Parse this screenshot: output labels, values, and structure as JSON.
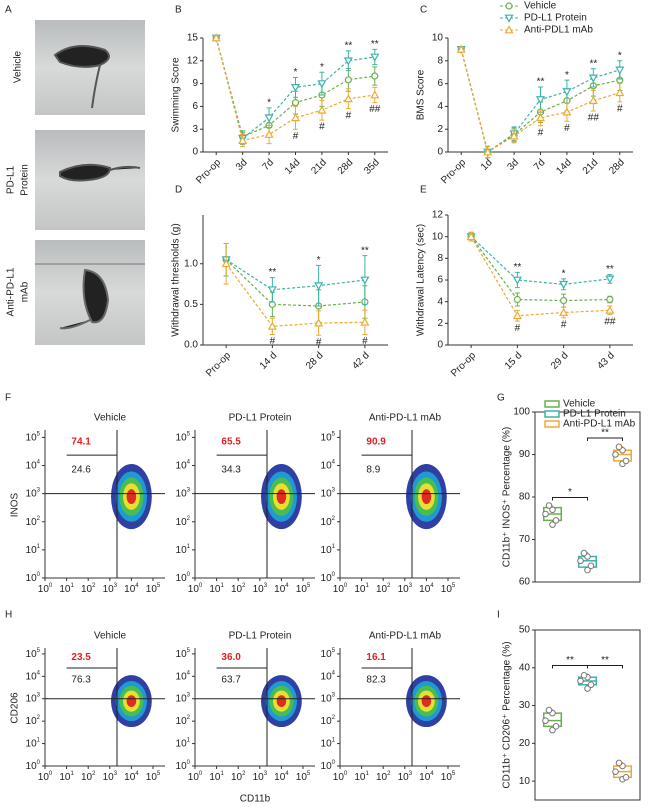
{
  "panel_labels": [
    "A",
    "B",
    "C",
    "D",
    "E",
    "F",
    "G",
    "H",
    "I"
  ],
  "photos": {
    "labels": [
      [
        "Vehicle"
      ],
      [
        "PD-L1",
        "Protein"
      ],
      [
        "Anti-PD-L1",
        "mAb"
      ]
    ]
  },
  "chart_data": [
    {
      "type": "line",
      "ylabel": "Swimming Score",
      "categories": [
        "Pro-op",
        "3d",
        "7d",
        "14d",
        "21d",
        "28d",
        "35d"
      ],
      "ylim": [
        0,
        15
      ],
      "yticks": [
        0,
        3,
        6,
        9,
        12,
        15
      ],
      "series": [
        {
          "color": "#6ab04c",
          "marker": "circle",
          "values": [
            15,
            2,
            3.5,
            6.5,
            7.5,
            9.5,
            10
          ],
          "errors": [
            0.3,
            0.8,
            1.2,
            1.5,
            1.5,
            1.5,
            1.2
          ]
        },
        {
          "color": "#3bb3a9",
          "marker": "triangle-down",
          "values": [
            15,
            1.8,
            4.5,
            8.5,
            9,
            12,
            12.5
          ],
          "errors": [
            0.3,
            0.8,
            1.3,
            1.3,
            1.5,
            1.3,
            1
          ]
        },
        {
          "color": "#f0a830",
          "marker": "triangle-up",
          "values": [
            15,
            1.5,
            2.3,
            4.5,
            5.5,
            7,
            7.5
          ],
          "errors": [
            0.3,
            0.8,
            1.2,
            1.5,
            1.3,
            1.3,
            1
          ]
        }
      ],
      "annotations_above": [
        null,
        null,
        "*",
        "*",
        "*",
        "**",
        "**"
      ],
      "annotations_below": [
        null,
        null,
        null,
        "#",
        "#",
        "#",
        "##"
      ]
    },
    {
      "type": "line",
      "ylabel": "BMS Score",
      "categories": [
        "Pro-op",
        "1d",
        "3d",
        "7d",
        "14d",
        "21d",
        "28d"
      ],
      "ylim": [
        0,
        10
      ],
      "yticks": [
        0,
        2,
        4,
        6,
        8,
        10
      ],
      "legend": "upper right",
      "series": [
        {
          "name": "Vehicle",
          "color": "#6ab04c",
          "marker": "circle",
          "values": [
            9,
            0,
            1.5,
            3.5,
            4.5,
            5.8,
            6.3
          ],
          "errors": [
            0.2,
            0.5,
            0.6,
            0.9,
            0.9,
            0.9,
            0.9
          ]
        },
        {
          "name": "PD-L1 Protein",
          "color": "#3bb3a9",
          "marker": "triangle-down",
          "values": [
            9,
            0,
            1.6,
            4.6,
            5.3,
            6.5,
            7.2
          ],
          "errors": [
            0.2,
            0.5,
            0.6,
            1.1,
            1,
            0.8,
            0.8
          ]
        },
        {
          "name": "Anti-PDL1 mAb",
          "color": "#f0a830",
          "marker": "triangle-up",
          "values": [
            9,
            0,
            1.4,
            3,
            3.5,
            4.5,
            5.2
          ],
          "errors": [
            0.2,
            0.5,
            0.6,
            0.7,
            0.8,
            0.9,
            0.8
          ]
        }
      ],
      "annotations_above": [
        null,
        null,
        null,
        "**",
        "*",
        "**",
        "*"
      ],
      "annotations_below": [
        null,
        null,
        null,
        "#",
        "#",
        "##",
        "#"
      ]
    },
    {
      "type": "line",
      "ylabel": "Withdrawal thresholds (g)",
      "categories": [
        "Pro-op",
        "14 d",
        "28 d",
        "42 d"
      ],
      "ylim": [
        0,
        1.6
      ],
      "yticks": [
        {
          "value": 0,
          "label": "0.0"
        },
        {
          "value": 0.5,
          "label": "0.5"
        },
        {
          "value": 1,
          "label": "1.0"
        }
      ],
      "series": [
        {
          "color": "#6ab04c",
          "marker": "circle",
          "values": [
            1.05,
            0.5,
            0.48,
            0.53
          ],
          "errors": [
            0.2,
            0.15,
            0.2,
            0.2
          ]
        },
        {
          "color": "#3bb3a9",
          "marker": "triangle-down",
          "values": [
            1.05,
            0.68,
            0.73,
            0.8
          ],
          "errors": [
            0.2,
            0.15,
            0.25,
            0.3
          ]
        },
        {
          "color": "#f0a830",
          "marker": "triangle-up",
          "values": [
            1,
            0.23,
            0.27,
            0.28
          ],
          "errors": [
            0.25,
            0.1,
            0.15,
            0.15
          ]
        }
      ],
      "annotations_above": [
        null,
        "**",
        "*",
        "**"
      ],
      "annotations_below": [
        null,
        "#",
        "#",
        "#"
      ]
    },
    {
      "type": "line",
      "ylabel": "Withdrawal Latency (sec)",
      "categories": [
        "Pro-op",
        "15 d",
        "29 d",
        "43 d"
      ],
      "ylim": [
        0,
        12
      ],
      "yticks": [
        0,
        2,
        4,
        6,
        8,
        10,
        12
      ],
      "series": [
        {
          "color": "#6ab04c",
          "marker": "circle",
          "values": [
            10,
            4.2,
            4.1,
            4.2
          ],
          "errors": [
            0.4,
            0.6,
            0.6,
            0.3
          ]
        },
        {
          "color": "#3bb3a9",
          "marker": "triangle-down",
          "values": [
            10,
            6,
            5.6,
            6.1
          ],
          "errors": [
            0.4,
            0.7,
            0.5,
            0.4
          ]
        },
        {
          "color": "#f0a830",
          "marker": "triangle-up",
          "values": [
            10,
            2.7,
            3,
            3.2
          ],
          "errors": [
            0.4,
            0.5,
            0.5,
            0.4
          ]
        }
      ],
      "annotations_above": [
        null,
        "**",
        "*",
        "**"
      ],
      "annotations_below": [
        null,
        "#",
        "#",
        "##"
      ]
    },
    {
      "type": "box",
      "ylabel": "CD11b⁺ INOS⁺ Percentage (%)",
      "ylim": [
        60,
        100
      ],
      "yticks": [
        60,
        70,
        80,
        90,
        100
      ],
      "legend": "upper left",
      "series": [
        {
          "name": "Vehicle",
          "color": "#6ab04c",
          "min": 73,
          "q1": 74.5,
          "median": 76,
          "q3": 77.5,
          "max": 78,
          "points": [
            73.5,
            74.5,
            76,
            77,
            78
          ]
        },
        {
          "name": "PD-L1 Protein",
          "color": "#3bb3a9",
          "min": 62.5,
          "q1": 63.5,
          "median": 65,
          "q3": 66,
          "max": 67,
          "points": [
            62.8,
            63.8,
            65,
            66,
            66.8
          ]
        },
        {
          "name": "Anti-PD-L1 mAb",
          "color": "#f0a830",
          "min": 87.5,
          "q1": 88.5,
          "median": 90,
          "q3": 91,
          "max": 92,
          "points": [
            87.8,
            88.5,
            90,
            91,
            91.8
          ]
        }
      ],
      "significance": [
        "*",
        "**"
      ]
    },
    {
      "type": "box",
      "ylabel": "CD11b⁺ CD206⁺ Percentage (%)",
      "ylim": [
        5,
        50
      ],
      "yticks": [
        10,
        20,
        30,
        40,
        50
      ],
      "series": [
        {
          "color": "#6ab04c",
          "min": 23,
          "q1": 24.5,
          "median": 26,
          "q3": 28,
          "max": 29,
          "points": [
            23.5,
            24.5,
            26,
            28,
            28.8
          ]
        },
        {
          "color": "#3bb3a9",
          "min": 34,
          "q1": 35.5,
          "median": 36.5,
          "q3": 37.5,
          "max": 38.5,
          "points": [
            34.5,
            35.5,
            36.5,
            37.5,
            38
          ]
        },
        {
          "color": "#f0a830",
          "min": 10,
          "q1": 11,
          "median": 12.5,
          "q3": 14,
          "max": 15,
          "points": [
            10.5,
            11,
            12.5,
            14,
            14.8
          ]
        }
      ],
      "significance": [
        "**",
        "**"
      ]
    }
  ],
  "flow": {
    "xlabel": "CD11b",
    "tick_base": "10",
    "tick_exponents": [
      0,
      1,
      2,
      3,
      4,
      5
    ],
    "rows": [
      {
        "ylabel": "INOS",
        "plots": [
          {
            "title": "Vehicle",
            "upper": "74.1",
            "lower": "24.6"
          },
          {
            "title": "PD-L1 Protein",
            "upper": "65.5",
            "lower": "34.3"
          },
          {
            "title": "Anti-PD-L1 mAb",
            "upper": "90.9",
            "lower": "8.9"
          }
        ]
      },
      {
        "ylabel": "CD206",
        "plots": [
          {
            "title": "Vehicle",
            "upper": "23.5",
            "lower": "76.3"
          },
          {
            "title": "PD-L1 Protein",
            "upper": "36.0",
            "lower": "63.7"
          },
          {
            "title": "Anti-PD-L1 mAb",
            "upper": "16.1",
            "lower": "82.3"
          }
        ]
      }
    ]
  }
}
